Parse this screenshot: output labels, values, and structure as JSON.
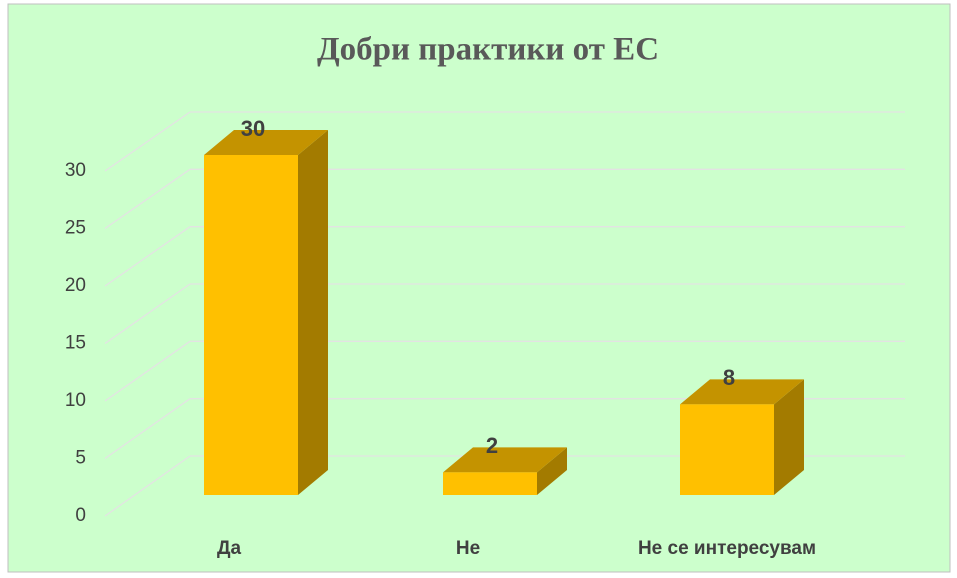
{
  "chart_data": {
    "type": "bar3d",
    "title": "Добри практики от ЕС",
    "categories": [
      "Да",
      "Не",
      "Не се интересувам"
    ],
    "values": [
      30,
      2,
      8
    ],
    "color": "#ffc000",
    "side_color": "#a37b00",
    "top_color": "#c49300",
    "ylim": [
      0,
      30
    ],
    "yticks": [
      0,
      5,
      10,
      15,
      20,
      25,
      30
    ],
    "grid": true
  }
}
